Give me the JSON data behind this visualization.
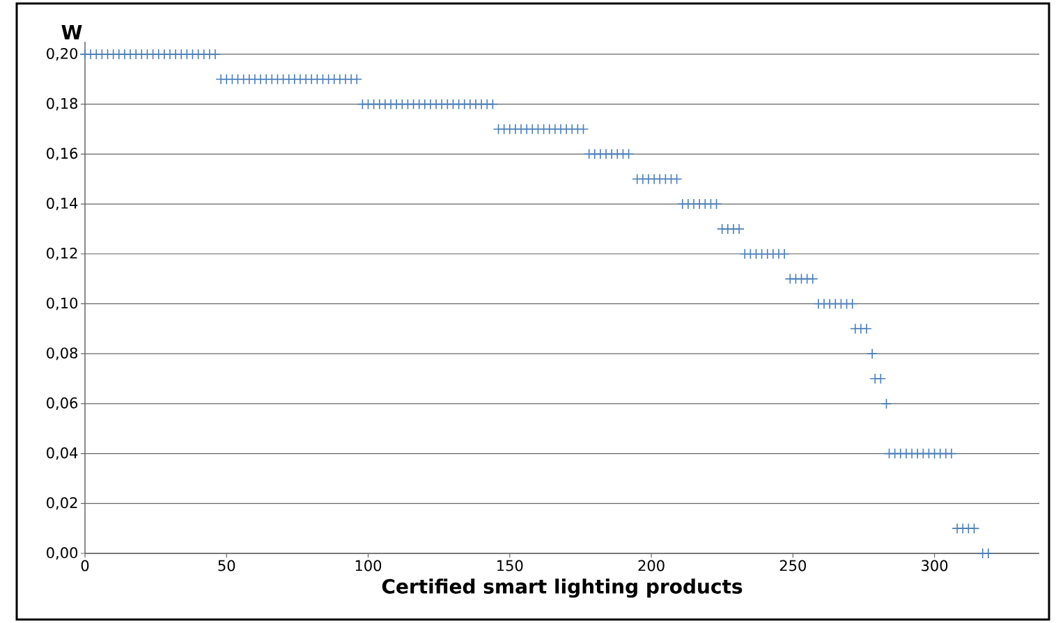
{
  "chart_data": {
    "type": "scatter",
    "xlabel": "Certified smart lighting products",
    "ylabel": "W",
    "x": [
      0,
      2,
      4,
      6,
      8,
      10,
      12,
      14,
      16,
      18,
      20,
      22,
      24,
      26,
      28,
      30,
      32,
      34,
      36,
      38,
      40,
      42,
      44,
      46,
      48,
      50,
      52,
      54,
      56,
      58,
      60,
      62,
      64,
      66,
      68,
      70,
      72,
      74,
      76,
      78,
      80,
      82,
      84,
      86,
      88,
      90,
      92,
      94,
      96,
      98,
      100,
      102,
      104,
      106,
      108,
      110,
      112,
      114,
      116,
      118,
      120,
      122,
      124,
      126,
      128,
      130,
      132,
      134,
      136,
      138,
      140,
      142,
      144,
      146,
      148,
      150,
      152,
      154,
      156,
      158,
      160,
      162,
      164,
      166,
      168,
      170,
      172,
      174,
      176,
      178,
      180,
      182,
      184,
      186,
      188,
      190,
      192,
      195,
      197,
      199,
      201,
      203,
      205,
      207,
      209,
      211,
      213,
      215,
      217,
      219,
      221,
      223,
      225,
      227,
      229,
      231,
      233,
      235,
      237,
      239,
      241,
      243,
      245,
      247,
      249,
      251,
      253,
      255,
      257,
      259,
      261,
      263,
      265,
      267,
      269,
      271,
      272,
      274,
      276,
      278,
      279,
      281,
      283,
      284,
      286,
      288,
      290,
      292,
      294,
      296,
      298,
      300,
      302,
      304,
      306,
      308,
      310,
      312,
      314,
      317,
      319
    ],
    "values": [
      0.2,
      0.2,
      0.2,
      0.2,
      0.2,
      0.2,
      0.2,
      0.2,
      0.2,
      0.2,
      0.2,
      0.2,
      0.2,
      0.2,
      0.2,
      0.2,
      0.2,
      0.2,
      0.2,
      0.2,
      0.2,
      0.2,
      0.2,
      0.2,
      0.19,
      0.19,
      0.19,
      0.19,
      0.19,
      0.19,
      0.19,
      0.19,
      0.19,
      0.19,
      0.19,
      0.19,
      0.19,
      0.19,
      0.19,
      0.19,
      0.19,
      0.19,
      0.19,
      0.19,
      0.19,
      0.19,
      0.19,
      0.19,
      0.19,
      0.18,
      0.18,
      0.18,
      0.18,
      0.18,
      0.18,
      0.18,
      0.18,
      0.18,
      0.18,
      0.18,
      0.18,
      0.18,
      0.18,
      0.18,
      0.18,
      0.18,
      0.18,
      0.18,
      0.18,
      0.18,
      0.18,
      0.18,
      0.18,
      0.17,
      0.17,
      0.17,
      0.17,
      0.17,
      0.17,
      0.17,
      0.17,
      0.17,
      0.17,
      0.17,
      0.17,
      0.17,
      0.17,
      0.17,
      0.17,
      0.16,
      0.16,
      0.16,
      0.16,
      0.16,
      0.16,
      0.16,
      0.16,
      0.15,
      0.15,
      0.15,
      0.15,
      0.15,
      0.15,
      0.15,
      0.15,
      0.14,
      0.14,
      0.14,
      0.14,
      0.14,
      0.14,
      0.14,
      0.13,
      0.13,
      0.13,
      0.13,
      0.12,
      0.12,
      0.12,
      0.12,
      0.12,
      0.12,
      0.12,
      0.12,
      0.11,
      0.11,
      0.11,
      0.11,
      0.11,
      0.1,
      0.1,
      0.1,
      0.1,
      0.1,
      0.1,
      0.1,
      0.09,
      0.09,
      0.09,
      0.08,
      0.07,
      0.07,
      0.06,
      0.04,
      0.04,
      0.04,
      0.04,
      0.04,
      0.04,
      0.04,
      0.04,
      0.04,
      0.04,
      0.04,
      0.04,
      0.01,
      0.01,
      0.01,
      0.01,
      0.0,
      0.0
    ],
    "color": "#4a7ebb",
    "marker": "cross",
    "grid": "y",
    "xlim": [
      0,
      337
    ],
    "ylim": [
      0,
      0.205
    ],
    "xticks": [
      0,
      50,
      100,
      150,
      200,
      250,
      300
    ],
    "yticks": [
      {
        "value": 0.0,
        "label": "0,00"
      },
      {
        "value": 0.02,
        "label": "0,02"
      },
      {
        "value": 0.04,
        "label": "0,04"
      },
      {
        "value": 0.06,
        "label": "0,06"
      },
      {
        "value": 0.08,
        "label": "0,08"
      },
      {
        "value": 0.1,
        "label": "0,10"
      },
      {
        "value": 0.12,
        "label": "0,12"
      },
      {
        "value": 0.14,
        "label": "0,14"
      },
      {
        "value": 0.16,
        "label": "0,16"
      },
      {
        "value": 0.18,
        "label": "0,18"
      },
      {
        "value": 0.2,
        "label": "0,20"
      }
    ]
  }
}
